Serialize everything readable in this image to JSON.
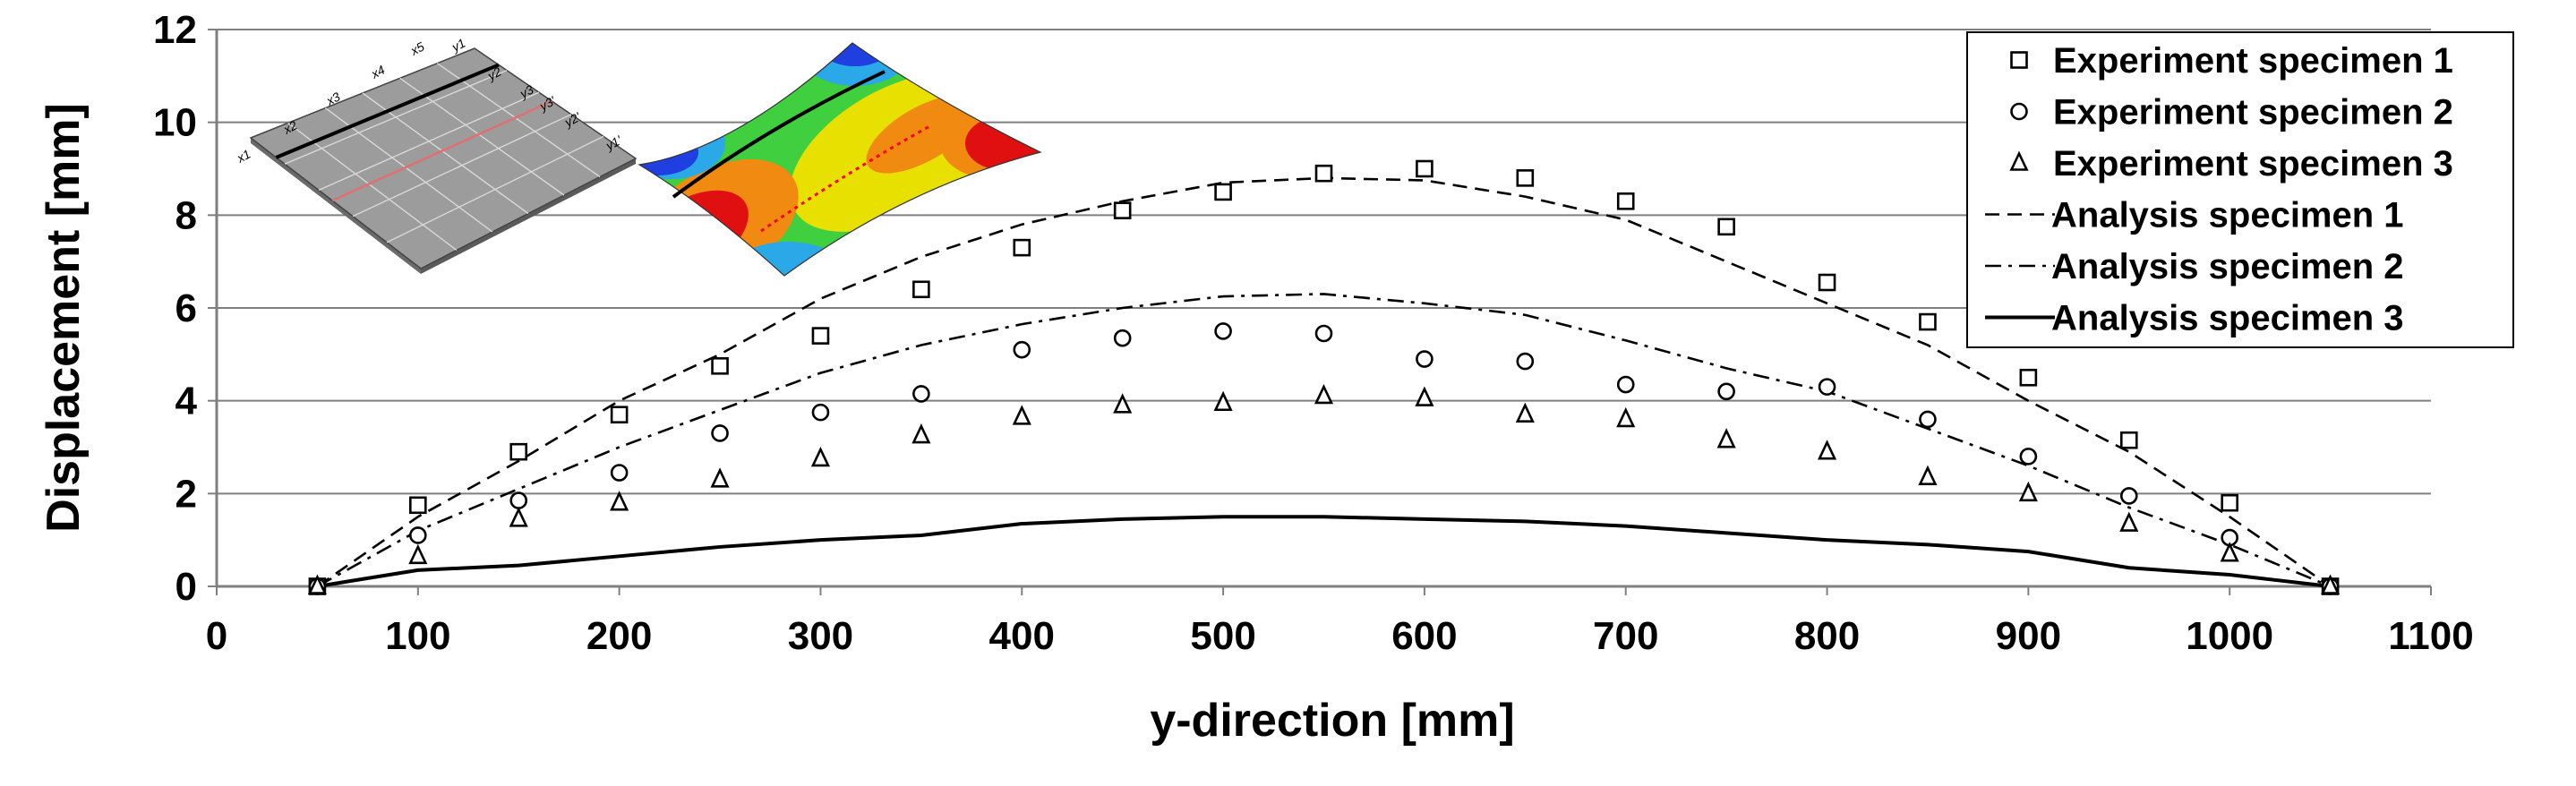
{
  "chart_data": {
    "type": "scatter",
    "title": "",
    "xlabel": "y-direction [mm]",
    "ylabel": "Displacement [mm]",
    "xlim": [
      0,
      1100
    ],
    "ylim": [
      0,
      12
    ],
    "xticks": [
      0,
      100,
      200,
      300,
      400,
      500,
      600,
      700,
      800,
      900,
      1000,
      1100
    ],
    "yticks": [
      0,
      2,
      4,
      6,
      8,
      10,
      12
    ],
    "grid": "horizontal",
    "legend_position": "top-right",
    "series": [
      {
        "name": "Experiment specimen 1",
        "kind": "markers",
        "marker": "square",
        "x": [
          50,
          100,
          150,
          200,
          250,
          300,
          350,
          400,
          450,
          500,
          550,
          600,
          650,
          700,
          750,
          800,
          850,
          900,
          950,
          1000,
          1050
        ],
        "y": [
          0,
          1.75,
          2.9,
          3.7,
          4.75,
          5.4,
          6.4,
          7.3,
          8.1,
          8.5,
          8.9,
          9.0,
          8.8,
          8.3,
          7.75,
          6.55,
          5.7,
          4.5,
          3.15,
          1.8,
          0
        ]
      },
      {
        "name": "Experiment specimen 2",
        "kind": "markers",
        "marker": "circle",
        "x": [
          50,
          100,
          150,
          200,
          250,
          300,
          350,
          400,
          450,
          500,
          550,
          600,
          650,
          700,
          750,
          800,
          850,
          900,
          950,
          1000,
          1050
        ],
        "y": [
          0,
          1.1,
          1.85,
          2.45,
          3.3,
          3.75,
          4.15,
          5.1,
          5.35,
          5.5,
          5.45,
          4.9,
          4.85,
          4.35,
          4.2,
          4.3,
          3.6,
          2.8,
          1.95,
          1.05,
          0
        ]
      },
      {
        "name": "Experiment specimen 3",
        "kind": "markers",
        "marker": "triangle",
        "x": [
          50,
          100,
          150,
          200,
          250,
          300,
          350,
          400,
          450,
          500,
          550,
          600,
          650,
          700,
          750,
          800,
          850,
          900,
          950,
          1000,
          1050
        ],
        "y": [
          0,
          0.65,
          1.45,
          1.8,
          2.3,
          2.75,
          3.25,
          3.65,
          3.9,
          3.95,
          4.1,
          4.05,
          3.7,
          3.6,
          3.15,
          2.9,
          2.35,
          2.0,
          1.35,
          0.7,
          0
        ]
      },
      {
        "name": "Analysis specimen 1",
        "kind": "line",
        "dash": "dashed",
        "x": [
          50,
          100,
          150,
          200,
          250,
          300,
          350,
          400,
          450,
          500,
          550,
          600,
          650,
          700,
          750,
          800,
          850,
          900,
          950,
          1000,
          1050
        ],
        "y": [
          0,
          1.5,
          2.7,
          4.0,
          5.0,
          6.2,
          7.1,
          7.8,
          8.3,
          8.7,
          8.8,
          8.75,
          8.4,
          7.9,
          7.0,
          6.1,
          5.2,
          4.0,
          2.9,
          1.5,
          0
        ]
      },
      {
        "name": "Analysis specimen 2",
        "kind": "line",
        "dash": "dash-dot",
        "x": [
          50,
          100,
          150,
          200,
          250,
          300,
          350,
          400,
          450,
          500,
          550,
          600,
          650,
          700,
          750,
          800,
          850,
          900,
          950,
          1000,
          1050
        ],
        "y": [
          0,
          1.2,
          2.1,
          3.0,
          3.8,
          4.6,
          5.2,
          5.65,
          6.0,
          6.25,
          6.3,
          6.1,
          5.85,
          5.3,
          4.7,
          4.2,
          3.4,
          2.6,
          1.7,
          0.9,
          0
        ]
      },
      {
        "name": "Analysis specimen 3",
        "kind": "line",
        "dash": "solid",
        "x": [
          50,
          100,
          150,
          200,
          250,
          300,
          350,
          400,
          450,
          500,
          550,
          600,
          650,
          700,
          750,
          800,
          850,
          900,
          950,
          1000,
          1050
        ],
        "y": [
          0,
          0.35,
          0.45,
          0.65,
          0.85,
          1.0,
          1.1,
          1.35,
          1.45,
          1.5,
          1.5,
          1.45,
          1.4,
          1.3,
          1.15,
          1.0,
          0.9,
          0.75,
          0.4,
          0.25,
          0
        ]
      }
    ],
    "insets": {
      "plate_labels": [
        "x1",
        "x2",
        "x3",
        "x4",
        "x5",
        "y1",
        "y2",
        "y3",
        "y3'",
        "y2'",
        "y1'"
      ],
      "colors": {
        "plate_fill": "#9c9c9c",
        "contour_blue": "#1f3fe0",
        "contour_green": "#3fcf3f",
        "contour_yellow": "#e8e000",
        "contour_orange": "#f08a10",
        "contour_red": "#e01010",
        "dotted_path": "#ff0000"
      }
    }
  }
}
